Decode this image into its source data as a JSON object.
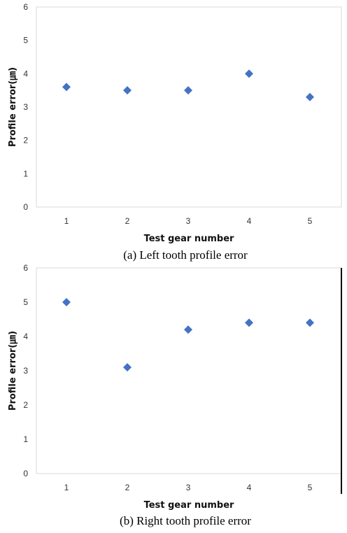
{
  "chart_data": [
    {
      "type": "scatter",
      "title": "",
      "caption": "(a) Left tooth profile error",
      "xlabel": "Test gear number",
      "ylabel": "Profile error(㎛)",
      "x": [
        1,
        2,
        3,
        4,
        5
      ],
      "x_tick_labels": [
        "1",
        "2",
        "3",
        "4",
        "5"
      ],
      "ylim": [
        0,
        6
      ],
      "y_tick_labels": [
        "0",
        "1",
        "2",
        "3",
        "4",
        "5",
        "6"
      ],
      "series": [
        {
          "values": [
            3.6,
            3.5,
            3.5,
            4.0,
            3.3
          ],
          "marker": "diamond",
          "color": "#4472c4"
        }
      ],
      "grid": false,
      "legend": "none"
    },
    {
      "type": "scatter",
      "title": "",
      "caption": "(b) Right tooth profile error",
      "xlabel": "Test gear number",
      "ylabel": "Profile error(㎛)",
      "x": [
        1,
        2,
        3,
        4,
        5
      ],
      "x_tick_labels": [
        "1",
        "2",
        "3",
        "4",
        "5"
      ],
      "ylim": [
        0,
        6
      ],
      "y_tick_labels": [
        "0",
        "1",
        "2",
        "3",
        "4",
        "5",
        "6"
      ],
      "series": [
        {
          "values": [
            5.0,
            3.1,
            4.2,
            4.4,
            4.4
          ],
          "marker": "diamond",
          "color": "#4472c4"
        }
      ],
      "grid": false,
      "legend": "none"
    }
  ],
  "colors": {
    "marker": "#4472c4",
    "frame": "#d9d9d9",
    "edge": "#000000"
  }
}
